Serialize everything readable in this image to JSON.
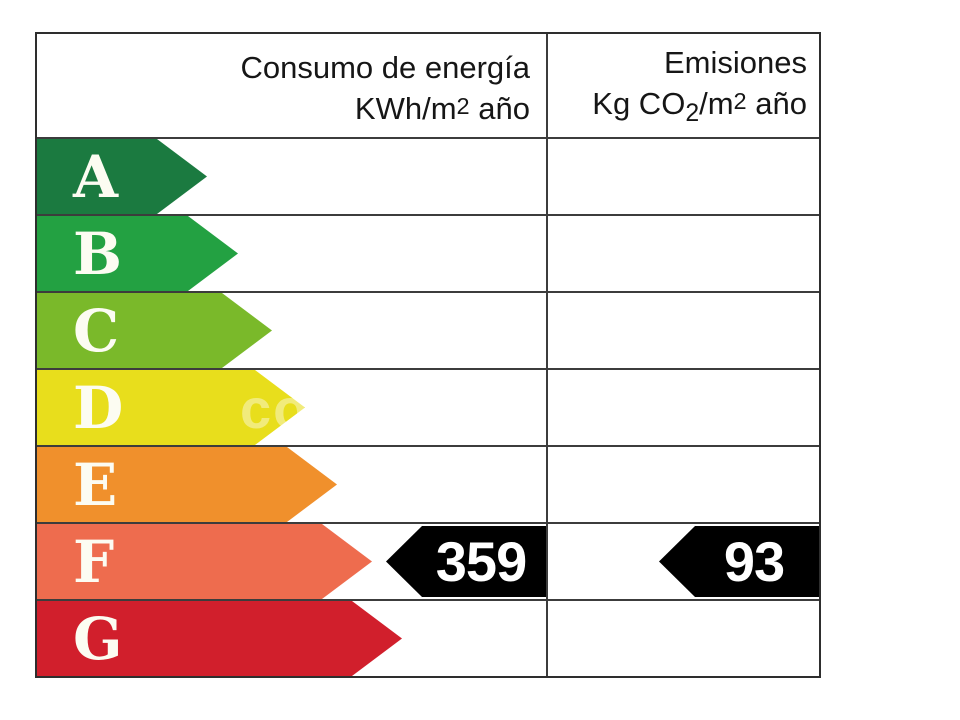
{
  "columns": [
    {
      "title": "Consumo de energía",
      "unit": {
        "base": "KWh/m",
        "exp": "2",
        "tail": " año"
      }
    },
    {
      "title": "Emisiones",
      "unit": {
        "base": "Kg CO",
        "sub": "2",
        "mid": "/m",
        "exp": "2",
        "tail": " año"
      }
    }
  ],
  "ratings": [
    {
      "grade": "A",
      "color": "#1b7a40"
    },
    {
      "grade": "B",
      "color": "#23a142"
    },
    {
      "grade": "C",
      "color": "#7ab92a"
    },
    {
      "grade": "D",
      "color": "#e8de1c"
    },
    {
      "grade": "E",
      "color": "#f0902c"
    },
    {
      "grade": "F",
      "color": "#ee6c4e"
    },
    {
      "grade": "G",
      "color": "#d11f2c"
    }
  ],
  "result": {
    "grade": "F",
    "consumption_value": "359",
    "emissions_value": "93",
    "marker_color": "#000000",
    "value_text_color": "#ffffff"
  },
  "watermark": {
    "text": "co"
  },
  "chart_data": {
    "type": "bar",
    "categories": [
      "A",
      "B",
      "C",
      "D",
      "E",
      "F",
      "G"
    ],
    "bar_colors": [
      "#1b7a40",
      "#23a142",
      "#7ab92a",
      "#e8de1c",
      "#f0902c",
      "#ee6c4e",
      "#d11f2c"
    ],
    "series": [
      {
        "name": "Consumo de energía KWh/m2 año",
        "values": [
          null,
          null,
          null,
          null,
          null,
          359,
          null
        ]
      },
      {
        "name": "Emisiones Kg CO2/m2 año",
        "values": [
          null,
          null,
          null,
          null,
          null,
          93,
          null
        ]
      }
    ],
    "selected_grade": "F",
    "legend_position": "none",
    "grid": true
  }
}
